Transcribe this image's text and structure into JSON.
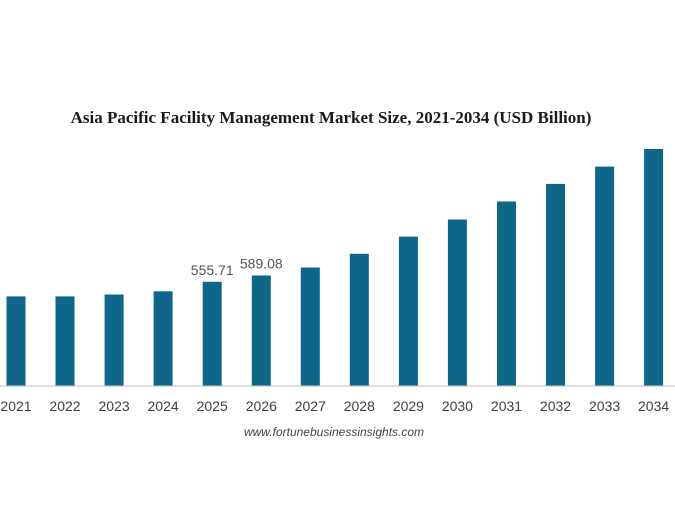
{
  "chart_data": {
    "type": "bar",
    "title": "Asia Pacific Facility Management Market Size, 2021-2034 (USD Billion)",
    "xlabel": "",
    "ylabel": "",
    "categories": [
      "2021",
      "2022",
      "2023",
      "2024",
      "2025",
      "2026",
      "2027",
      "2028",
      "2029",
      "2030",
      "2031",
      "2032",
      "2033",
      "2034"
    ],
    "values": [
      478,
      478,
      488,
      505,
      555.71,
      589.08,
      632,
      705,
      797,
      888,
      984,
      1078,
      1170,
      1264
    ],
    "data_labels": [
      "",
      "",
      "",
      "",
      "555.71",
      "589.08",
      "",
      "",
      "",
      "",
      "",
      "",
      "",
      ""
    ],
    "ylim": [
      0,
      1264
    ],
    "grid": false,
    "legend": "none",
    "bar_color": "#0e6688",
    "axis_color": "#bfbfbf"
  },
  "source": "www.fortunebusinessinsights.com"
}
